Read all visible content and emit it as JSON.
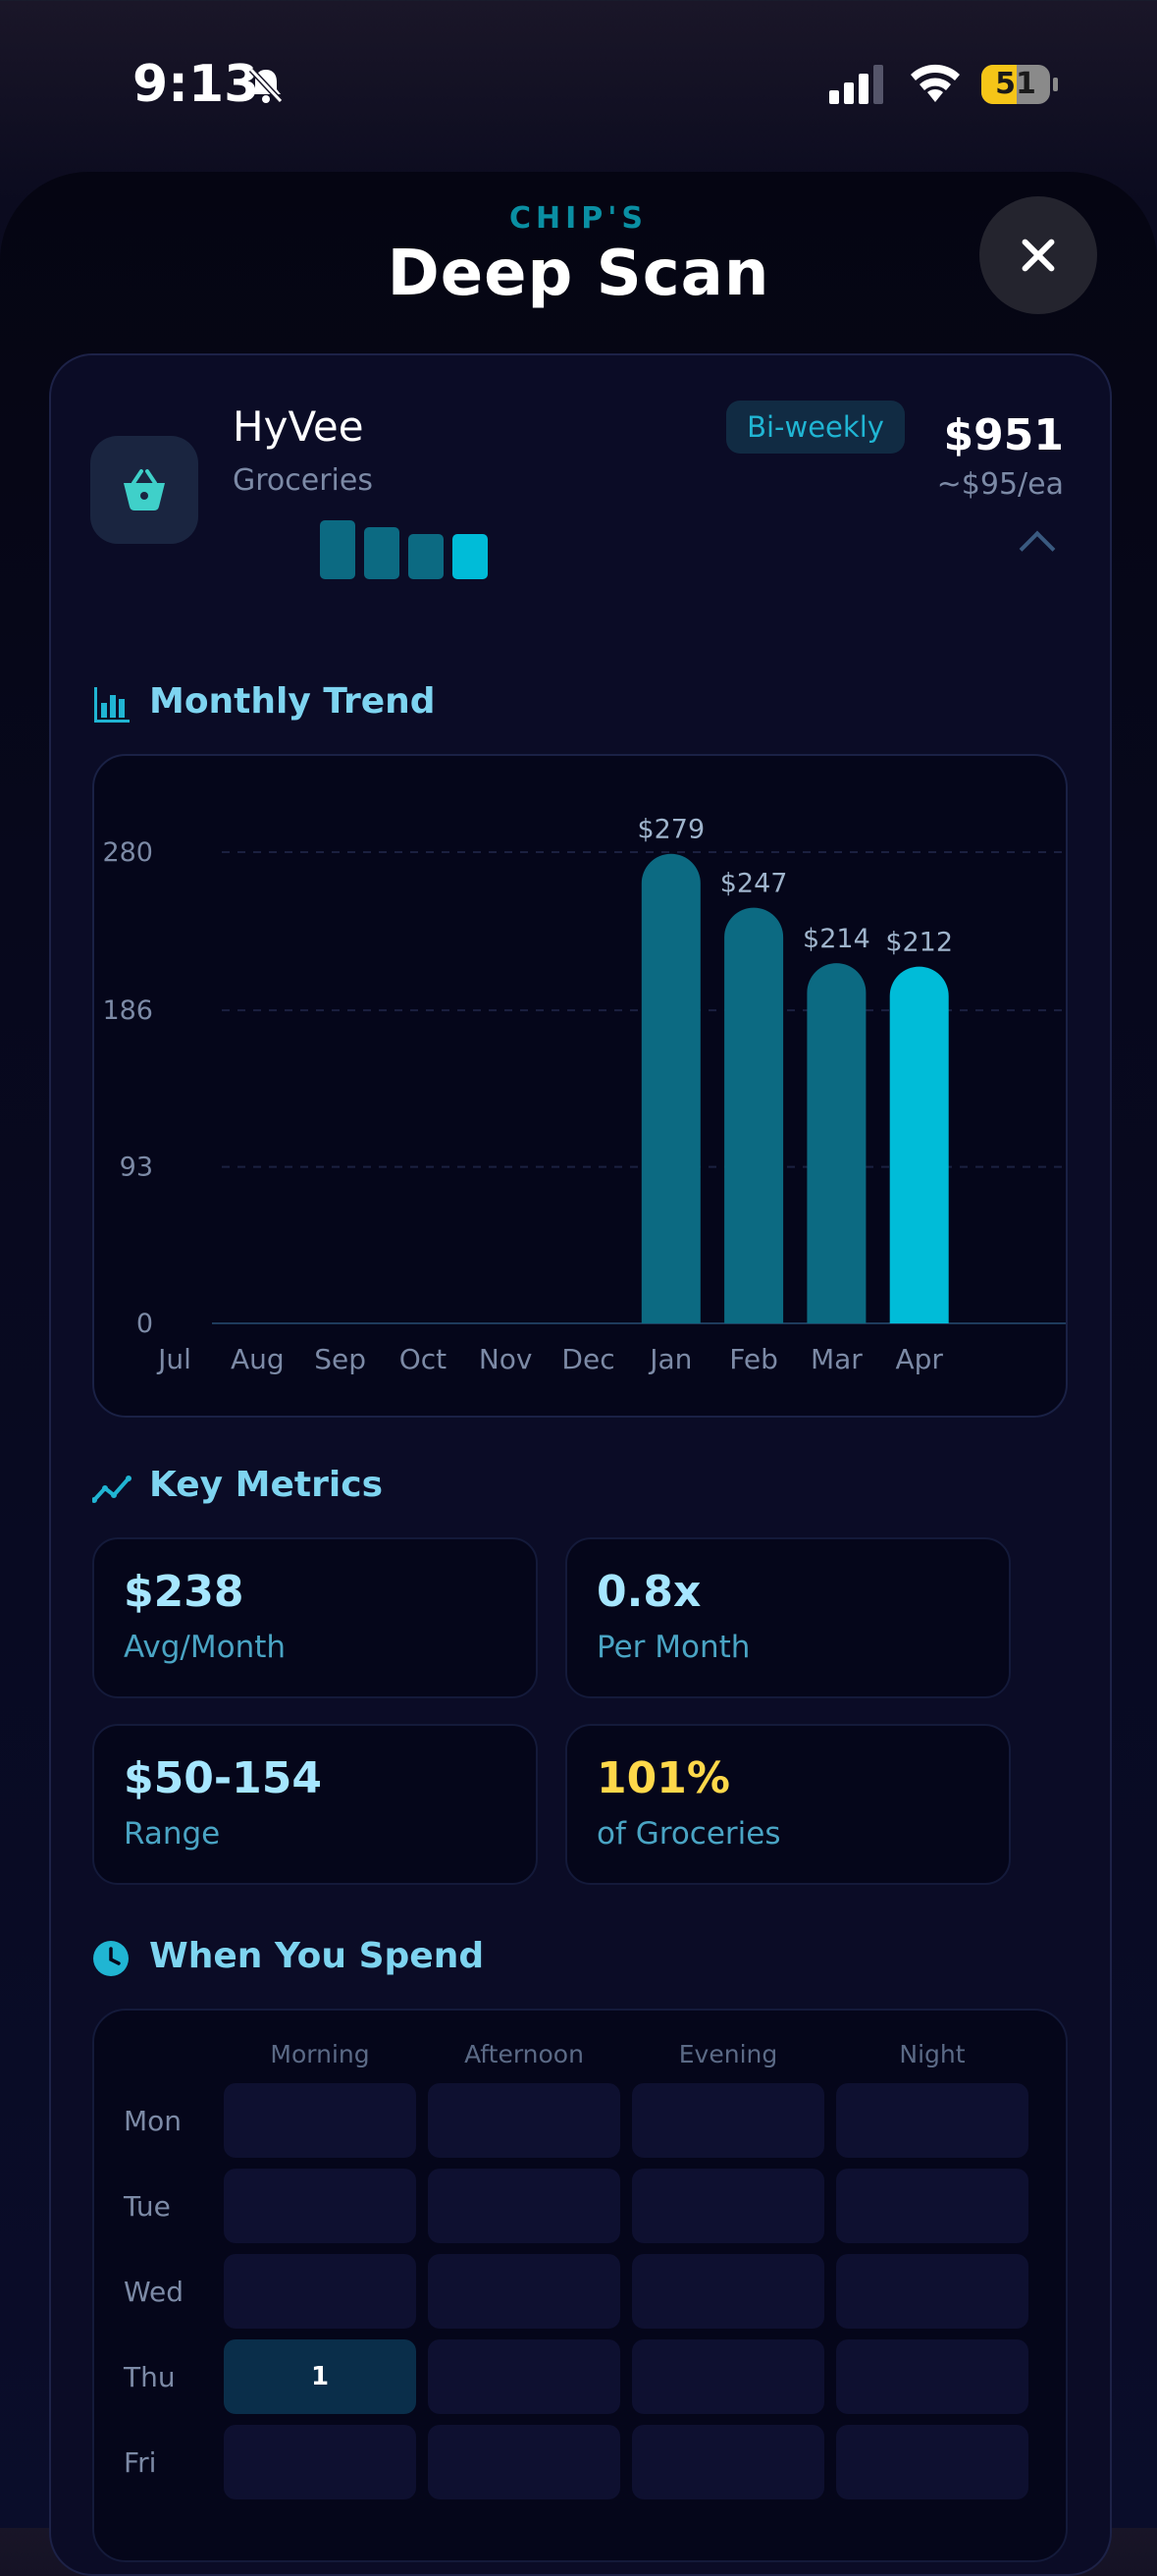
{
  "status_bar": {
    "time": "9:13",
    "battery_percent": "51",
    "battery_level": 0.51
  },
  "header": {
    "subtitle": "CHIP'S",
    "title": "Deep Scan"
  },
  "merchant": {
    "name": "HyVee",
    "category": "Groceries",
    "frequency": "Bi-weekly",
    "total": "$951",
    "per_each": "~$95/ea",
    "mini_bar_values": [
      279,
      247,
      214,
      212
    ]
  },
  "sections": {
    "monthly_trend": "Monthly Trend",
    "key_metrics": "Key Metrics",
    "when_you_spend": "When You Spend"
  },
  "chart_data": {
    "type": "bar",
    "categories": [
      "Jul",
      "Aug",
      "Sep",
      "Oct",
      "Nov",
      "Dec",
      "Jan",
      "Feb",
      "Mar",
      "Apr"
    ],
    "values": [
      0,
      0,
      0,
      0,
      0,
      0,
      279,
      247,
      214,
      212
    ],
    "data_labels": [
      "",
      "",
      "",
      "",
      "",
      "",
      "$279",
      "$247",
      "$214",
      "$212"
    ],
    "yticks": [
      0,
      93,
      186,
      280
    ],
    "ylim": [
      0,
      280
    ],
    "grid": true,
    "colors": {
      "bar": "#0c6a82",
      "bar_highlight": "#00bcd8"
    }
  },
  "metrics": [
    {
      "value": "$238",
      "label": "Avg/Month"
    },
    {
      "value": "0.8x",
      "label": "Per Month"
    },
    {
      "value": "$50-154",
      "label": "Range"
    },
    {
      "value": "101%",
      "label": "of Groceries"
    }
  ],
  "heatmap": {
    "columns": [
      "Morning",
      "Afternoon",
      "Evening",
      "Night"
    ],
    "rows": [
      {
        "day": "Mon",
        "cells": [
          "",
          "",
          "",
          ""
        ]
      },
      {
        "day": "Tue",
        "cells": [
          "",
          "",
          "",
          ""
        ]
      },
      {
        "day": "Wed",
        "cells": [
          "",
          "",
          "",
          ""
        ]
      },
      {
        "day": "Thu",
        "cells": [
          "1",
          "",
          "",
          ""
        ]
      },
      {
        "day": "Fri",
        "cells": [
          "",
          "",
          "",
          ""
        ]
      }
    ]
  },
  "icons": {
    "bell": "bell-off-icon",
    "close": "close-icon",
    "merchant": "shopping-basket-icon",
    "trend": "bar-chart-icon",
    "metrics": "trend-line-icon",
    "clock": "clock-icon"
  }
}
